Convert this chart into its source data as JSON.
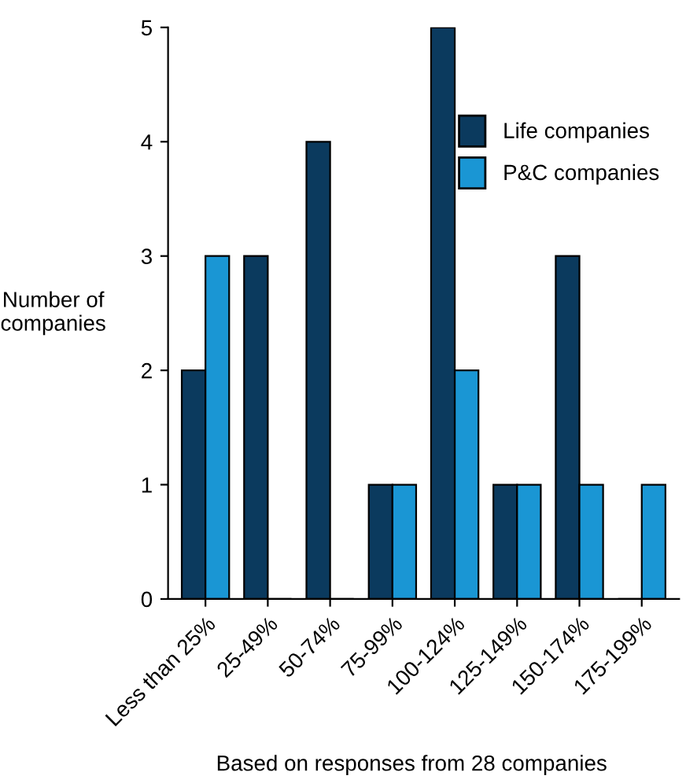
{
  "chart_data": {
    "type": "bar",
    "xlabel": "Based on responses from 28 companies",
    "ylabel": "Number of\ncompanies",
    "categories": [
      "Less than 25%",
      "25-49%",
      "50-74%",
      "75-99%",
      "100-124%",
      "125-149%",
      "150-174%",
      "175-199%"
    ],
    "series": [
      {
        "name": "Life companies",
        "color": "#0b3a5e",
        "values": [
          2,
          3,
          4,
          1,
          5,
          1,
          3,
          0
        ]
      },
      {
        "name": "P&C companies",
        "color": "#1a96d4",
        "values": [
          3,
          0,
          0,
          1,
          2,
          1,
          1,
          1
        ]
      }
    ],
    "ylim": [
      0,
      5
    ],
    "yticks": [
      0,
      1,
      2,
      3,
      4,
      5
    ],
    "grid": false,
    "legend": "top right"
  }
}
